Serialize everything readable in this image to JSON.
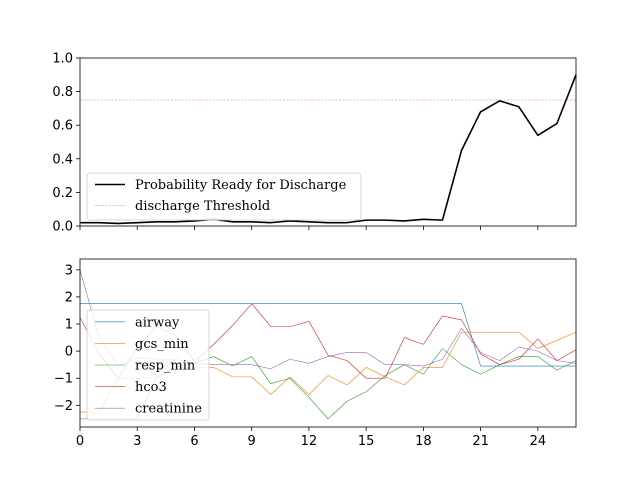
{
  "chart_data": [
    {
      "type": "line",
      "title": "",
      "xlabel": "",
      "ylabel": "",
      "xlim": [
        0,
        26
      ],
      "ylim": [
        0.0,
        1.0
      ],
      "y_ticks": [
        "0.0",
        "0.2",
        "0.4",
        "0.6",
        "0.8",
        "1.0"
      ],
      "x_ticks_visible": false,
      "legend_position": "lower-left",
      "x": [
        0,
        1,
        2,
        3,
        4,
        5,
        6,
        7,
        8,
        9,
        10,
        11,
        12,
        13,
        14,
        15,
        16,
        17,
        18,
        19,
        20,
        21,
        22,
        23,
        24,
        25,
        26
      ],
      "series": [
        {
          "name": "Probability Ready for Discharge",
          "color": "#000000",
          "values": [
            0.02,
            0.02,
            0.015,
            0.02,
            0.025,
            0.025,
            0.03,
            0.04,
            0.025,
            0.025,
            0.02,
            0.03,
            0.025,
            0.02,
            0.02,
            0.035,
            0.035,
            0.03,
            0.04,
            0.035,
            0.45,
            0.68,
            0.745,
            0.71,
            0.54,
            0.61,
            0.9
          ]
        },
        {
          "name": "discharge Threshold",
          "color": "#ff6f6f",
          "style": "dashed",
          "values": [
            0.75,
            0.75,
            0.75,
            0.75,
            0.75,
            0.75,
            0.75,
            0.75,
            0.75,
            0.75,
            0.75,
            0.75,
            0.75,
            0.75,
            0.75,
            0.75,
            0.75,
            0.75,
            0.75,
            0.75,
            0.75,
            0.75,
            0.75,
            0.75,
            0.75,
            0.75,
            0.75
          ]
        }
      ]
    },
    {
      "type": "line",
      "title": "",
      "xlabel": "",
      "ylabel": "",
      "xlim": [
        0,
        26
      ],
      "ylim": [
        -2.8,
        3.4
      ],
      "y_ticks": [
        "3",
        "2",
        "1",
        "0",
        "−1",
        "−2"
      ],
      "y_tick_values": [
        3,
        2,
        1,
        0,
        -1,
        -2
      ],
      "x_ticks": [
        "0",
        "3",
        "6",
        "9",
        "12",
        "15",
        "18",
        "21",
        "24"
      ],
      "x_tick_values": [
        0,
        3,
        6,
        9,
        12,
        15,
        18,
        21,
        24
      ],
      "legend_position": "center-left",
      "x": [
        0,
        1,
        2,
        3,
        4,
        5,
        6,
        7,
        8,
        9,
        10,
        11,
        12,
        13,
        14,
        15,
        16,
        17,
        18,
        19,
        20,
        21,
        22,
        23,
        24,
        25,
        26
      ],
      "series": [
        {
          "name": "airway",
          "color": "#1f77b4",
          "values": [
            1.75,
            1.75,
            1.75,
            1.75,
            1.75,
            1.75,
            1.75,
            1.75,
            1.75,
            1.75,
            1.75,
            1.75,
            1.75,
            1.75,
            1.75,
            1.75,
            1.75,
            1.75,
            1.75,
            1.75,
            1.75,
            -0.55,
            -0.55,
            -0.55,
            -0.55,
            -0.55,
            -0.55
          ]
        },
        {
          "name": "gcs_min",
          "color": "#ff7f0e",
          "values": [
            -2.25,
            -2.25,
            -1.0,
            -1.0,
            -0.95,
            -0.6,
            -0.6,
            -0.6,
            -0.95,
            -0.95,
            -1.6,
            -0.95,
            -1.6,
            -0.9,
            -1.25,
            -0.6,
            -0.95,
            -1.25,
            -0.6,
            -0.6,
            0.7,
            0.7,
            0.7,
            0.7,
            0.1,
            0.4,
            0.7
          ]
        },
        {
          "name": "resp_min",
          "color": "#2ca02c",
          "values": [
            -2.5,
            -2.5,
            -2.5,
            -2.5,
            -1.0,
            -0.6,
            -0.45,
            -0.2,
            -0.55,
            -0.2,
            -1.2,
            -1.0,
            -1.7,
            -2.5,
            -1.85,
            -1.5,
            -0.9,
            -0.5,
            -0.85,
            0.1,
            -0.5,
            -0.85,
            -0.5,
            -0.2,
            -0.2,
            -0.7,
            -0.35
          ]
        },
        {
          "name": "hco3",
          "color": "#d62728",
          "values": [
            1.25,
            -0.1,
            -1.0,
            0.15,
            0.9,
            0.6,
            -0.4,
            0.25,
            0.95,
            1.75,
            0.9,
            0.9,
            1.1,
            -0.15,
            -0.35,
            -1.0,
            -1.0,
            0.5,
            0.25,
            1.3,
            1.15,
            -0.1,
            -0.5,
            -0.3,
            0.45,
            -0.35,
            0.05
          ]
        },
        {
          "name": "creatinine",
          "color": "#9467bd",
          "values": [
            3.0,
            0.5,
            -0.55,
            -0.25,
            -0.3,
            -0.3,
            -0.45,
            -0.5,
            -0.5,
            -0.5,
            -0.65,
            -0.3,
            -0.45,
            -0.2,
            -0.05,
            -0.05,
            -0.5,
            -0.5,
            -0.55,
            -0.3,
            0.85,
            -0.05,
            -0.35,
            0.15,
            0.0,
            -0.35,
            -0.45
          ]
        }
      ]
    }
  ]
}
